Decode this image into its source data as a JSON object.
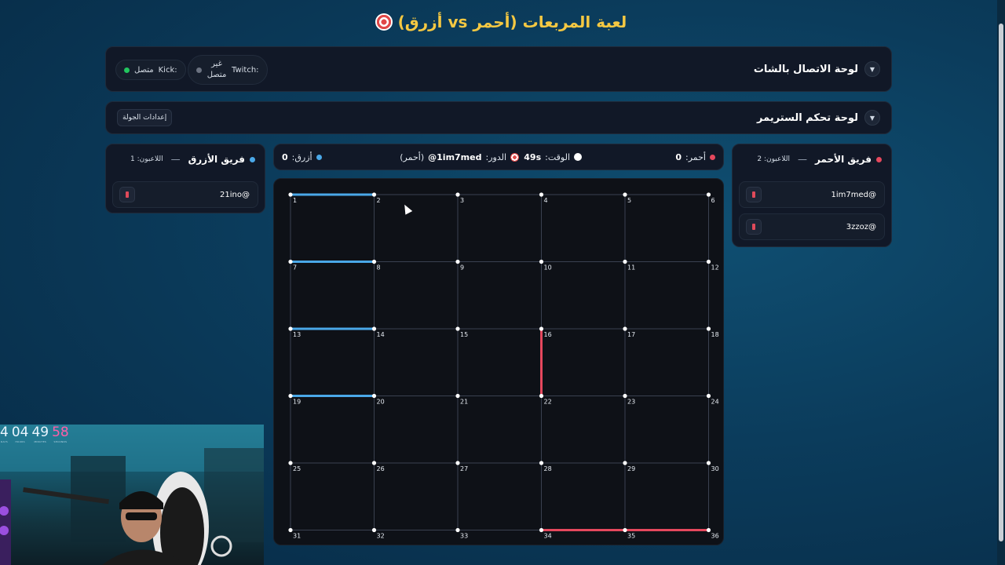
{
  "title": "لعبة المربعات (أحمر vs أزرق)",
  "chat_panel": {
    "label": "لوحة الاتصال بالشات",
    "twitch": {
      "name": "Twitch:",
      "status": "غير متصل",
      "dot_color": "#6b7280"
    },
    "kick": {
      "name": "Kick:",
      "status": "متصل",
      "dot_color": "#22c55e"
    }
  },
  "streamer_panel": {
    "label": "لوحة تحكم الستريمر",
    "round_settings": "إعدادات الجولة"
  },
  "red_team": {
    "name": "فريق الأحمر",
    "separator": "—",
    "players_count": "اللاعبون: 2",
    "color": "#e5485d",
    "players": [
      "1im7med@",
      "3zzoz@"
    ]
  },
  "blue_team": {
    "name": "فريق الأزرق",
    "separator": "—",
    "players_count": "اللاعبون: 1",
    "color": "#4aa8e8",
    "players": [
      "21ino@"
    ]
  },
  "scorebar": {
    "red_label": "أحمر:",
    "red_score": "0",
    "time_label": "الوقت:",
    "time_value": "49s",
    "turn_label": "الدور:",
    "turn_player": "@1im7med",
    "turn_team": "(أحمر)",
    "blue_label": "أزرق:",
    "blue_score": "0"
  },
  "board": {
    "rows": 6,
    "cols": 6,
    "dot_labels": [
      "1",
      "2",
      "3",
      "4",
      "5",
      "6",
      "7",
      "8",
      "9",
      "10",
      "11",
      "12",
      "13",
      "14",
      "15",
      "16",
      "17",
      "18",
      "19",
      "20",
      "21",
      "22",
      "23",
      "24",
      "25",
      "26",
      "27",
      "28",
      "29",
      "30",
      "31",
      "32",
      "33",
      "34",
      "35",
      "36"
    ],
    "lines": [
      {
        "from": 1,
        "to": 2,
        "team": "blue"
      },
      {
        "from": 7,
        "to": 8,
        "team": "blue"
      },
      {
        "from": 13,
        "to": 14,
        "team": "blue"
      },
      {
        "from": 19,
        "to": 20,
        "team": "blue"
      },
      {
        "from": 16,
        "to": 22,
        "team": "red"
      },
      {
        "from": 34,
        "to": 35,
        "team": "red"
      },
      {
        "from": 35,
        "to": 36,
        "team": "red"
      }
    ],
    "grid_color": "#3a4150",
    "blue_color": "#4aa8e8",
    "red_color": "#e5485d"
  },
  "countdown": [
    {
      "value": "4",
      "label": "DAYS"
    },
    {
      "value": "04",
      "label": "HOURS"
    },
    {
      "value": "49",
      "label": "MINUTES"
    },
    {
      "value": "58",
      "label": "SECONDS"
    }
  ]
}
